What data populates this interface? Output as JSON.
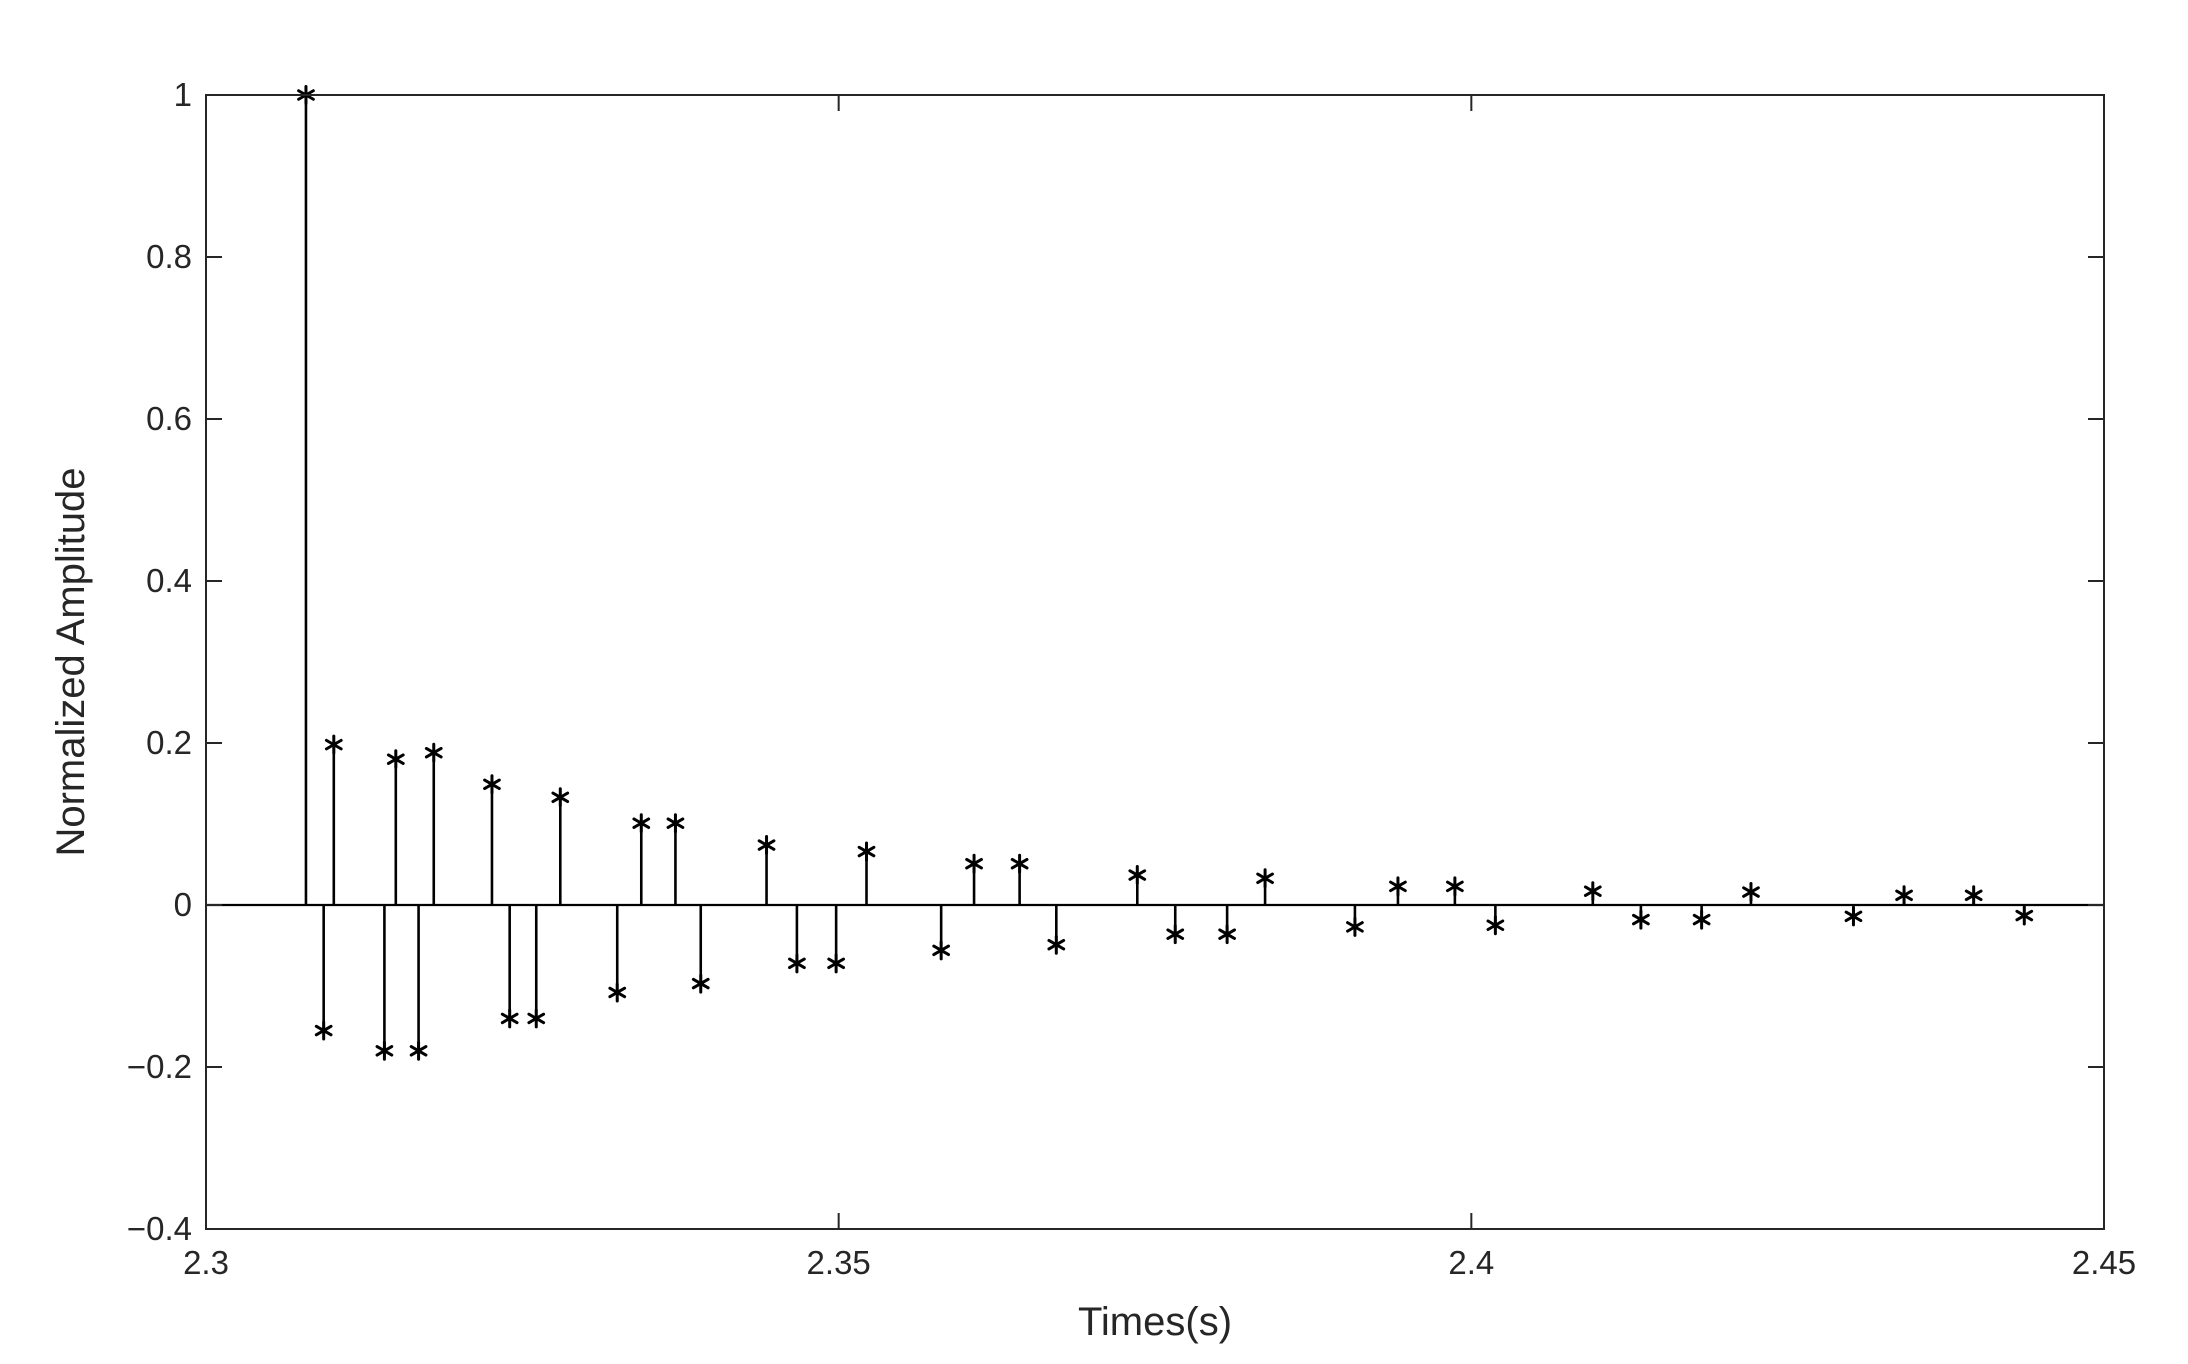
{
  "chart_data": {
    "type": "stem",
    "title": "",
    "xlabel": "Times(s)",
    "ylabel": "Normalized Amplitude",
    "xlim": [
      2.3,
      2.45
    ],
    "ylim": [
      -0.4,
      1.0
    ],
    "xticks": [
      2.3,
      2.35,
      2.4,
      2.45
    ],
    "xtick_labels": [
      "2.3",
      "2.35",
      "2.4",
      "2.45"
    ],
    "yticks": [
      -0.4,
      -0.2,
      0,
      0.2,
      0.4,
      0.6,
      0.8,
      1.0
    ],
    "ytick_labels": [
      "−0.4",
      "−0.2",
      "0",
      "0.2",
      "0.4",
      "0.6",
      "0.8",
      "1"
    ],
    "grid": false,
    "marker": "asterisk",
    "color": "#000000",
    "series": [
      {
        "x": [
          2.3079,
          2.3093,
          2.3101,
          2.3141,
          2.315,
          2.3168,
          2.318,
          2.3226,
          2.324,
          2.3261,
          2.328,
          2.3325,
          2.3344,
          2.3371,
          2.3391,
          2.3443,
          2.3467,
          2.3498,
          2.3522,
          2.3581,
          2.3607,
          2.3643,
          2.3672,
          2.3736,
          2.3766,
          2.3807,
          2.3837,
          2.3908,
          2.3942,
          2.3987,
          2.4019,
          2.4096,
          2.4134,
          2.4182,
          2.4221,
          2.4302,
          2.4342,
          2.4397,
          2.4437
        ],
        "y": [
          1.0,
          -0.155,
          0.198,
          -0.18,
          0.18,
          -0.18,
          0.188,
          0.149,
          -0.14,
          -0.14,
          0.133,
          -0.108,
          0.101,
          0.101,
          -0.097,
          0.074,
          -0.072,
          -0.072,
          0.066,
          -0.056,
          0.051,
          0.051,
          -0.049,
          0.037,
          -0.036,
          -0.036,
          0.033,
          -0.027,
          0.023,
          0.023,
          -0.025,
          0.017,
          -0.018,
          -0.018,
          0.016,
          -0.014,
          0.012,
          0.012,
          -0.013
        ]
      }
    ]
  }
}
